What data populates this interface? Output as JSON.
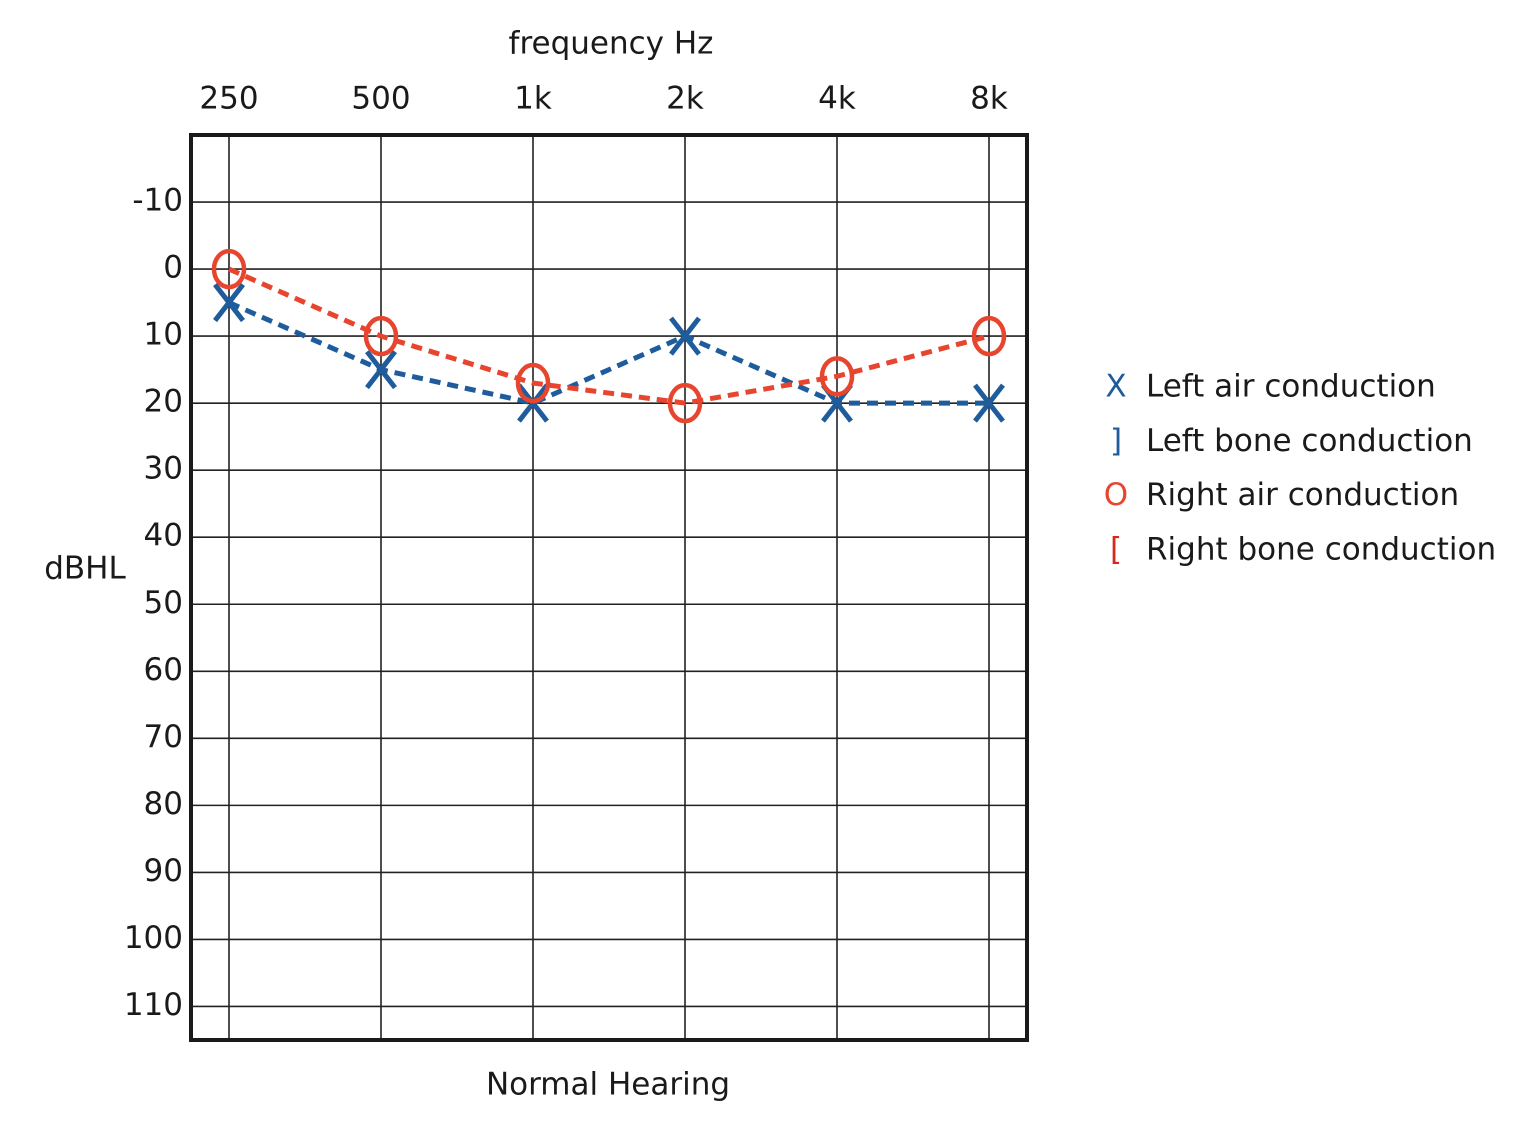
{
  "chart_data": {
    "type": "line",
    "title": "frequency Hz",
    "y_label": "dBHL",
    "x_label": "Normal Hearing",
    "categories": [
      "250",
      "500",
      "1k",
      "2k",
      "4k",
      "8k"
    ],
    "ylim": [
      -20,
      115
    ],
    "y_inverted": true,
    "yticks": [
      -10,
      0,
      10,
      20,
      30,
      40,
      50,
      60,
      70,
      80,
      90,
      100,
      110
    ],
    "grid": true,
    "legend": "right",
    "series": [
      {
        "name": "Left air conduction",
        "marker": "X",
        "color": "#1f5c9c",
        "dashed": true,
        "values": [
          5,
          15,
          20,
          10,
          20,
          20
        ]
      },
      {
        "name": "Left bone conduction",
        "marker": "]",
        "color": "#1f5c9c",
        "dashed": true,
        "values": [
          null,
          null,
          null,
          null,
          null,
          null
        ]
      },
      {
        "name": "Right air conduction",
        "marker": "O",
        "color": "#e8452f",
        "dashed": true,
        "values": [
          0,
          10,
          17,
          20,
          16,
          10
        ]
      },
      {
        "name": "Right bone conduction",
        "marker": "[",
        "color": "#d8281e",
        "dashed": true,
        "values": [
          null,
          null,
          null,
          null,
          null,
          null
        ]
      }
    ]
  }
}
